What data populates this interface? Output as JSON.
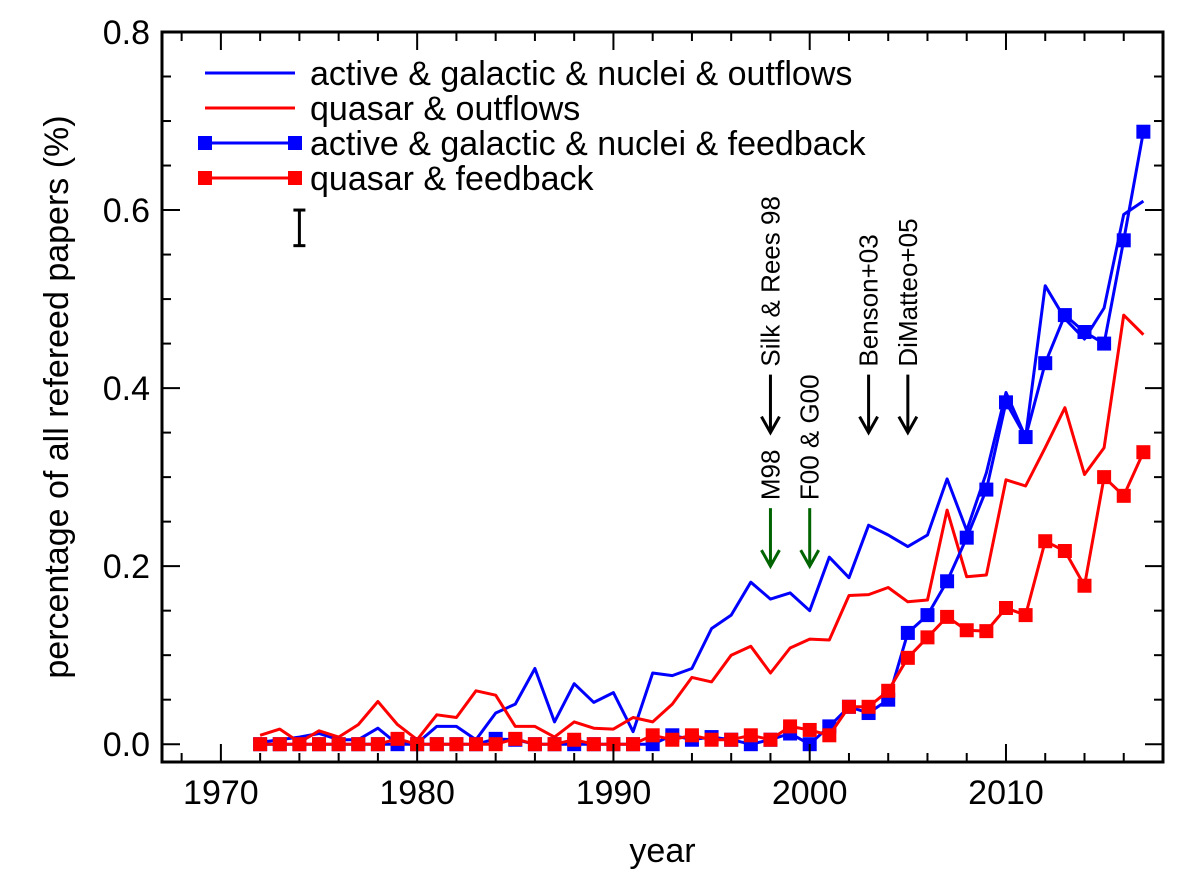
{
  "chart_data": {
    "type": "line",
    "title": "",
    "xlabel": "year",
    "ylabel": "percentage of all refereed papers (%)",
    "xlim": [
      1967,
      2018
    ],
    "ylim": [
      -0.02,
      0.8
    ],
    "xticks": [
      1970,
      1980,
      1990,
      2000,
      2010
    ],
    "xtick_labels": [
      "1970",
      "1980",
      "1990",
      "2000",
      "2010"
    ],
    "yticks": [
      0.0,
      0.2,
      0.4,
      0.6,
      0.8
    ],
    "ytick_labels": [
      "0.0",
      "0.2",
      "0.4",
      "0.6",
      "0.8"
    ],
    "grid": false,
    "legend_position": "top-left",
    "x": [
      1972,
      1973,
      1974,
      1975,
      1976,
      1977,
      1978,
      1979,
      1980,
      1981,
      1982,
      1983,
      1984,
      1985,
      1986,
      1987,
      1988,
      1989,
      1990,
      1991,
      1992,
      1993,
      1994,
      1995,
      1996,
      1997,
      1998,
      1999,
      2000,
      2001,
      2002,
      2003,
      2004,
      2005,
      2006,
      2007,
      2008,
      2009,
      2010,
      2011,
      2012,
      2013,
      2014,
      2015,
      2016,
      2017
    ],
    "series": [
      {
        "name": "active & galactic & nuclei & outflows",
        "color": "#0000ff",
        "marker": "none",
        "values": [
          0.002,
          0.005,
          0.008,
          0.012,
          0.005,
          0.005,
          0.018,
          0.0,
          0.001,
          0.02,
          0.02,
          0.005,
          0.035,
          0.045,
          0.085,
          0.025,
          0.068,
          0.047,
          0.058,
          0.014,
          0.08,
          0.077,
          0.085,
          0.13,
          0.145,
          0.182,
          0.163,
          0.17,
          0.15,
          0.21,
          0.187,
          0.246,
          0.235,
          0.222,
          0.235,
          0.298,
          0.24,
          0.305,
          0.395,
          0.345,
          0.515,
          0.478,
          0.455,
          0.49,
          0.595,
          0.61
        ]
      },
      {
        "name": "quasar & outflows",
        "color": "#ff0000",
        "marker": "none",
        "values": [
          0.01,
          0.017,
          0.002,
          0.015,
          0.008,
          0.022,
          0.048,
          0.022,
          0.005,
          0.033,
          0.03,
          0.06,
          0.055,
          0.02,
          0.02,
          0.008,
          0.025,
          0.018,
          0.017,
          0.03,
          0.025,
          0.045,
          0.075,
          0.07,
          0.1,
          0.11,
          0.08,
          0.108,
          0.118,
          0.117,
          0.167,
          0.168,
          0.176,
          0.16,
          0.162,
          0.263,
          0.188,
          0.19,
          0.297,
          0.29,
          0.333,
          0.378,
          0.303,
          0.333,
          0.482,
          0.46
        ]
      },
      {
        "name": "active & galactic & nuclei & feedback",
        "color": "#0000ff",
        "marker": "square",
        "values": [
          0.0,
          0.0,
          0.0,
          0.0,
          0.0,
          0.0,
          0.0,
          0.0,
          0.0,
          0.0,
          0.0,
          0.0,
          0.006,
          0.005,
          0.0,
          0.0,
          0.0,
          0.0,
          0.0,
          0.0,
          0.0,
          0.01,
          0.005,
          0.008,
          0.005,
          0.0,
          0.005,
          0.012,
          0.0,
          0.02,
          0.042,
          0.035,
          0.05,
          0.125,
          0.145,
          0.183,
          0.232,
          0.286,
          0.384,
          0.345,
          0.428,
          0.482,
          0.463,
          0.45,
          0.566,
          0.688
        ]
      },
      {
        "name": "quasar & feedback",
        "color": "#ff0000",
        "marker": "square",
        "values": [
          0.0,
          0.0,
          0.0,
          0.0,
          0.0,
          0.0,
          0.0,
          0.006,
          0.0,
          0.0,
          0.0,
          0.0,
          0.0,
          0.006,
          0.0,
          0.0,
          0.005,
          0.0,
          0.0,
          0.0,
          0.01,
          0.005,
          0.01,
          0.005,
          0.005,
          0.01,
          0.005,
          0.02,
          0.016,
          0.01,
          0.042,
          0.042,
          0.06,
          0.097,
          0.12,
          0.143,
          0.128,
          0.127,
          0.153,
          0.145,
          0.228,
          0.217,
          0.178,
          0.3,
          0.279,
          0.328
        ]
      }
    ],
    "error_bar": {
      "x": 1974,
      "y_low": 0.56,
      "y_high": 0.6
    },
    "annotations": [
      {
        "text": "M98",
        "x": 1998,
        "y_tip": 0.2,
        "color": "#006400"
      },
      {
        "text": "Silk & Rees 98",
        "x": 1998,
        "y_tip": 0.35,
        "color": "#000000"
      },
      {
        "text": "F00 & G00",
        "x": 2000,
        "y_tip": 0.2,
        "color": "#006400"
      },
      {
        "text": "Benson+03",
        "x": 2003,
        "y_tip": 0.35,
        "color": "#000000"
      },
      {
        "text": "DiMatteo+05",
        "x": 2005,
        "y_tip": 0.35,
        "color": "#000000"
      }
    ]
  }
}
